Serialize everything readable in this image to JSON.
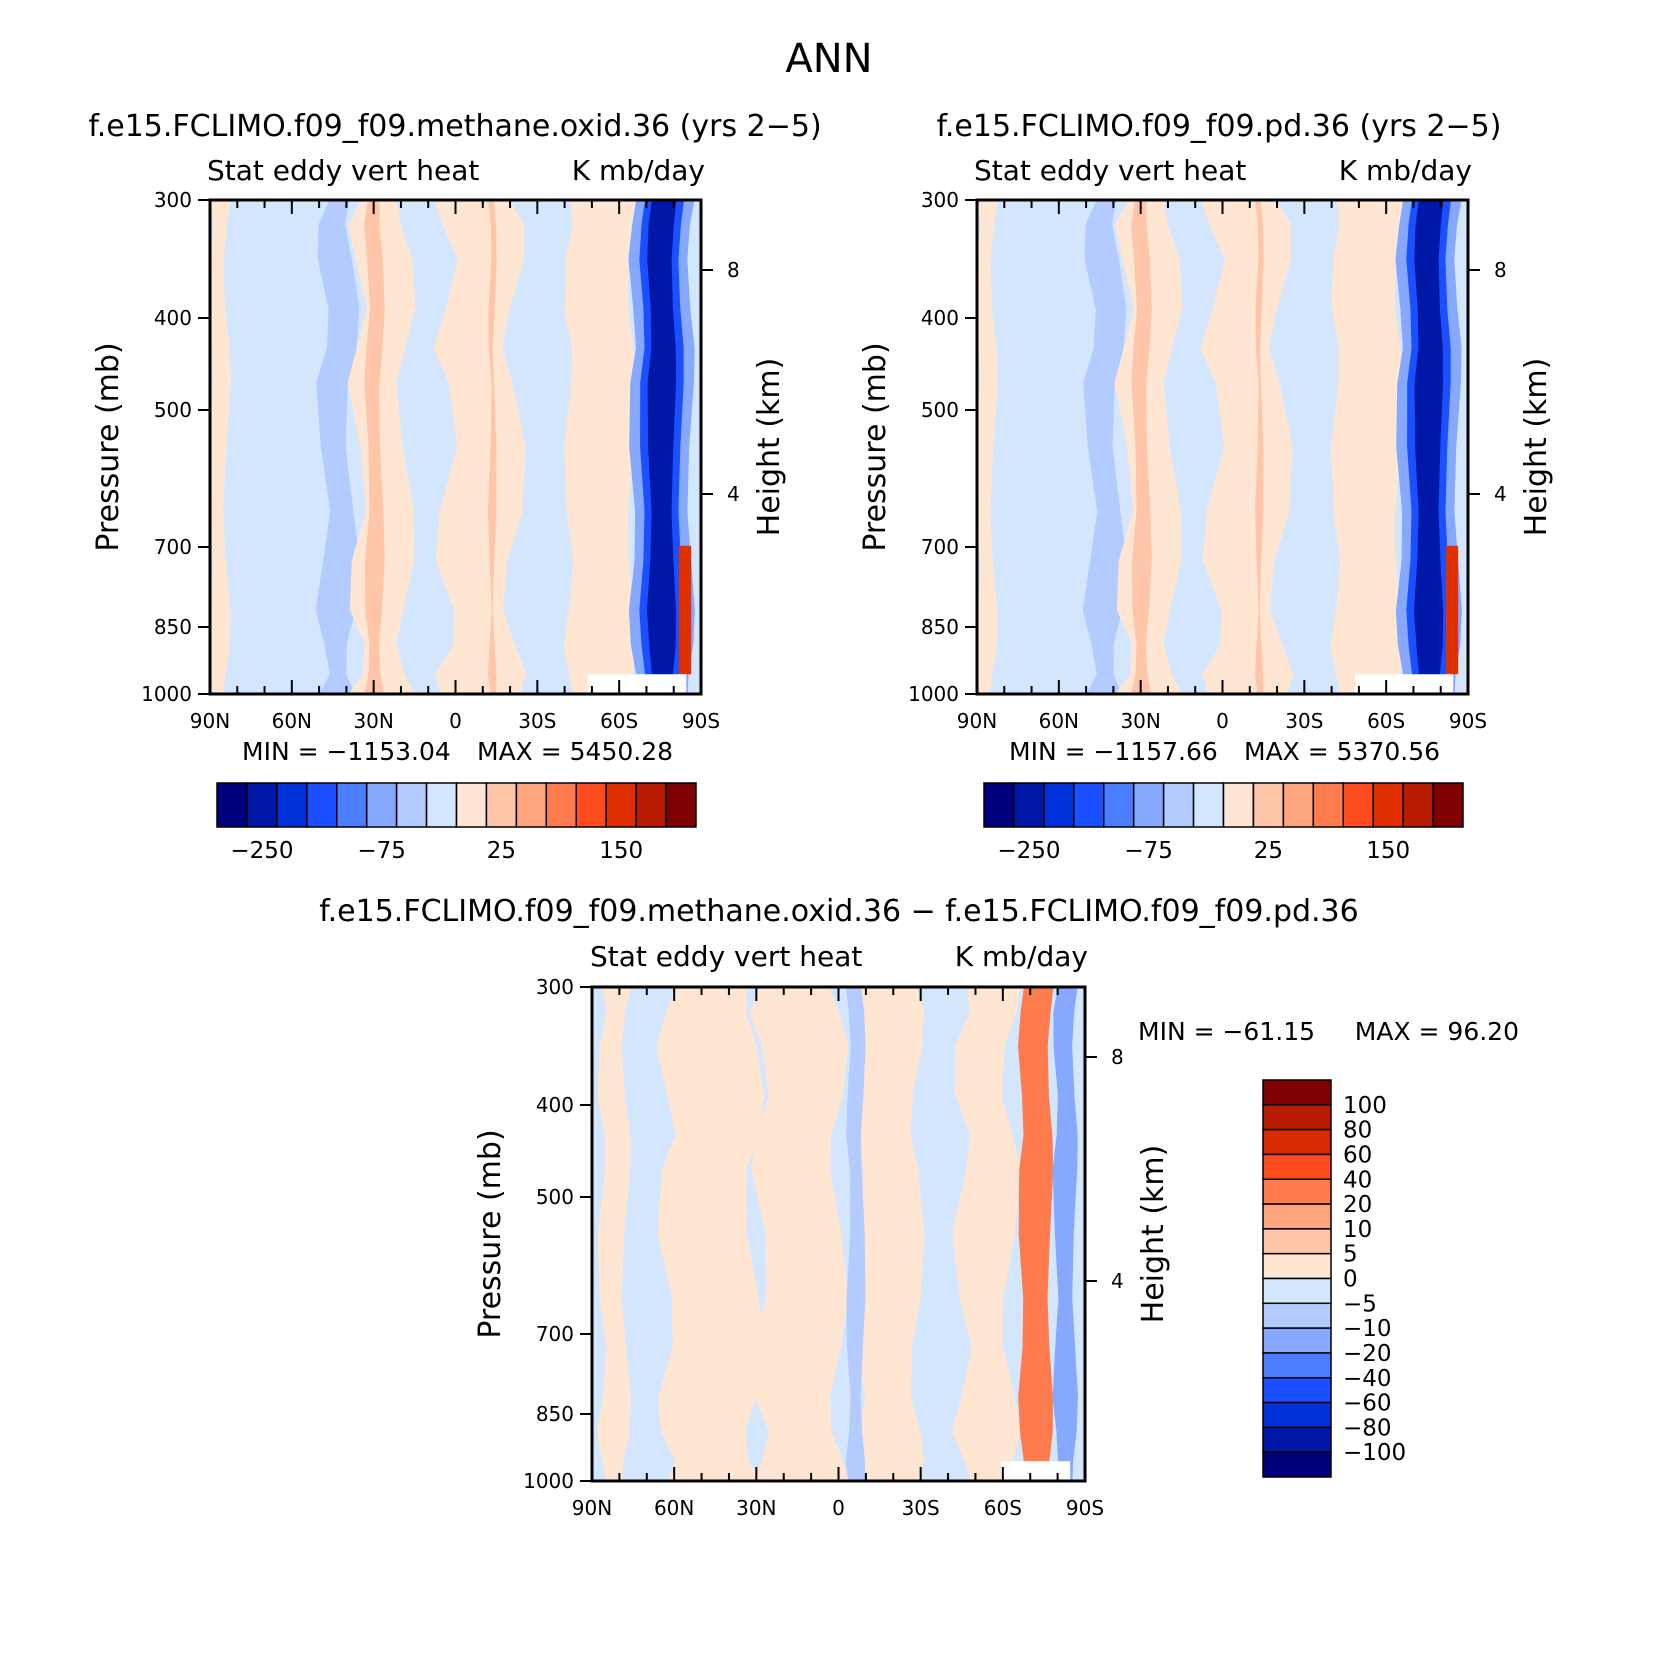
{
  "figure_title": "ANN",
  "colors": {
    "top_levels": [
      "#00007e",
      "#0018a8",
      "#0030d8",
      "#1a50ff",
      "#4a7dff",
      "#86a8ff",
      "#b4cbff",
      "#d4e6fd",
      "#fee6d2",
      "#fec5a8",
      "#fea57f",
      "#fe7b4e",
      "#fe4c1e",
      "#e03000",
      "#b81c00",
      "#7e0000"
    ],
    "diff_levels": [
      "#00007e",
      "#0018a8",
      "#0030d8",
      "#1a50ff",
      "#4a7dff",
      "#86a8ff",
      "#b4cbff",
      "#d4e6fd",
      "#fee6d2",
      "#fec5a8",
      "#fea57f",
      "#fe7b4e",
      "#fe4c1e",
      "#d82a00",
      "#b81c00",
      "#7e0000"
    ]
  },
  "chart_data": [
    {
      "type": "heatmap",
      "id": "panel-methane",
      "title": "f.e15.FCLIMO.f09_f09.methane.oxid.36 (yrs 2−5)",
      "subtitle_left": "Stat eddy vert heat",
      "subtitle_right": "K mb/day",
      "ylabel": "Pressure (mb)",
      "ylabel_right": "Height (km)",
      "x_ticks": [
        "90N",
        "60N",
        "30N",
        "0",
        "30S",
        "60S",
        "90S"
      ],
      "y_ticks": [
        "300",
        "400",
        "500",
        "700",
        "850",
        "1000"
      ],
      "y_ticks_right": [
        "8",
        "4"
      ],
      "min_label": "MIN = −1153.04",
      "max_label": "MAX = 5450.28",
      "colorbar_labels": [
        "−250",
        "−75",
        "25",
        "150"
      ]
    },
    {
      "type": "heatmap",
      "id": "panel-pd",
      "title": "f.e15.FCLIMO.f09_f09.pd.36 (yrs 2−5)",
      "subtitle_left": "Stat eddy vert heat",
      "subtitle_right": "K mb/day",
      "ylabel": "Pressure (mb)",
      "ylabel_right": "Height (km)",
      "x_ticks": [
        "90N",
        "60N",
        "30N",
        "0",
        "30S",
        "60S",
        "90S"
      ],
      "y_ticks": [
        "300",
        "400",
        "500",
        "700",
        "850",
        "1000"
      ],
      "y_ticks_right": [
        "8",
        "4"
      ],
      "min_label": "MIN = −1157.66",
      "max_label": "MAX = 5370.56",
      "colorbar_labels": [
        "−250",
        "−75",
        "25",
        "150"
      ]
    },
    {
      "type": "heatmap",
      "id": "panel-diff",
      "title": "f.e15.FCLIMO.f09_f09.methane.oxid.36 − f.e15.FCLIMO.f09_f09.pd.36",
      "subtitle_left": "Stat eddy vert heat",
      "subtitle_right": "K mb/day",
      "ylabel": "Pressure (mb)",
      "ylabel_right": "Height (km)",
      "x_ticks": [
        "90N",
        "60N",
        "30N",
        "0",
        "30S",
        "60S",
        "90S"
      ],
      "y_ticks": [
        "300",
        "400",
        "500",
        "700",
        "850",
        "1000"
      ],
      "y_ticks_right": [
        "8",
        "4"
      ],
      "min_label": "MIN = −61.15",
      "max_label": "MAX =  96.20",
      "colorbar_labels": [
        "100",
        "80",
        "60",
        "40",
        "20",
        "10",
        "5",
        "0",
        "−5",
        "−10",
        "−20",
        "−40",
        "−60",
        "−80",
        "−100"
      ]
    }
  ]
}
